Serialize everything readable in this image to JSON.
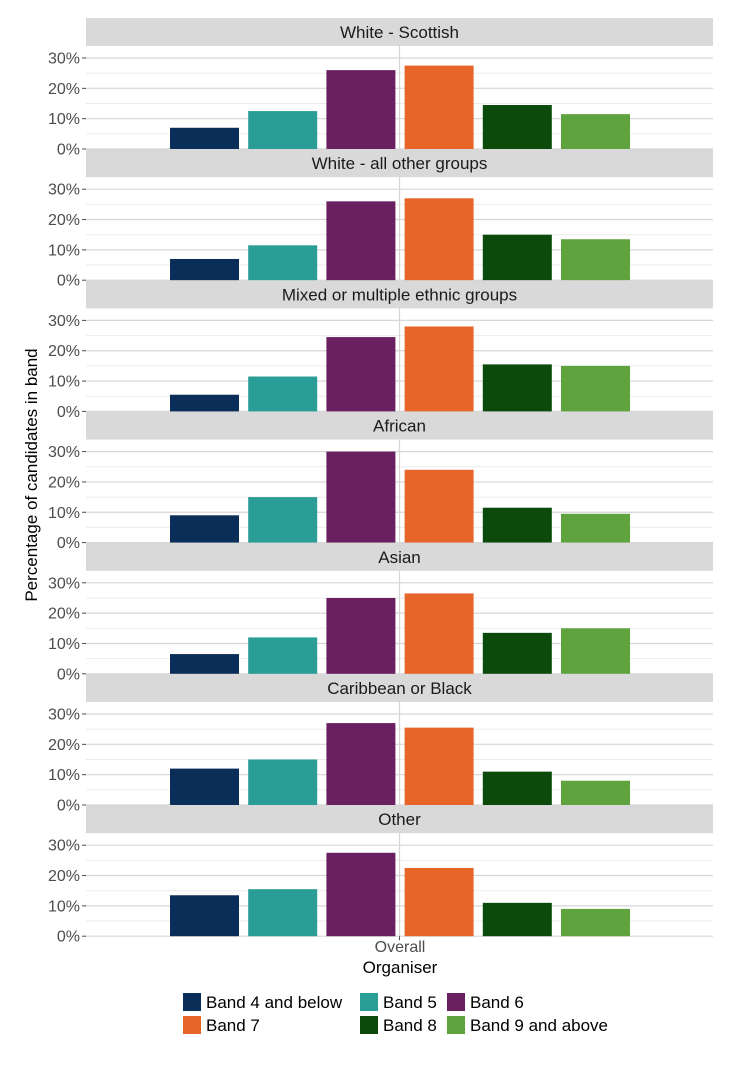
{
  "chart_data": {
    "type": "bar",
    "xlabel": "Organiser",
    "ylabel": "Percentage of candidates in band",
    "x_tick": "Overall",
    "ylim": [
      0,
      30
    ],
    "y_ticks": [
      "0%",
      "10%",
      "20%",
      "30%"
    ],
    "grid": true,
    "legend_position": "bottom",
    "series": [
      {
        "name": "Band 4 and below",
        "color": "#0b2e59"
      },
      {
        "name": "Band 5",
        "color": "#2a9d96"
      },
      {
        "name": "Band 6",
        "color": "#6a2060"
      },
      {
        "name": "Band 7",
        "color": "#e8652a"
      },
      {
        "name": "Band 8",
        "color": "#0c4a0c"
      },
      {
        "name": "Band 9 and above",
        "color": "#5fa33f"
      }
    ],
    "panels": [
      {
        "title": "White - Scottish",
        "values": [
          7,
          12.5,
          26,
          27.5,
          14.5,
          11.5
        ]
      },
      {
        "title": "White - all other groups",
        "values": [
          7,
          11.5,
          26,
          27,
          15,
          13.5
        ]
      },
      {
        "title": "Mixed or multiple ethnic groups",
        "values": [
          5.5,
          11.5,
          24.5,
          28,
          15.5,
          15
        ]
      },
      {
        "title": "African",
        "values": [
          9,
          15,
          30,
          24,
          11.5,
          9.5
        ]
      },
      {
        "title": "Asian",
        "values": [
          6.5,
          12,
          25,
          26.5,
          13.5,
          15
        ]
      },
      {
        "title": "Caribbean or Black",
        "values": [
          12,
          15,
          27,
          25.5,
          11,
          8
        ]
      },
      {
        "title": "Other",
        "values": [
          13.5,
          15.5,
          27.5,
          22.5,
          11,
          9
        ]
      }
    ]
  }
}
